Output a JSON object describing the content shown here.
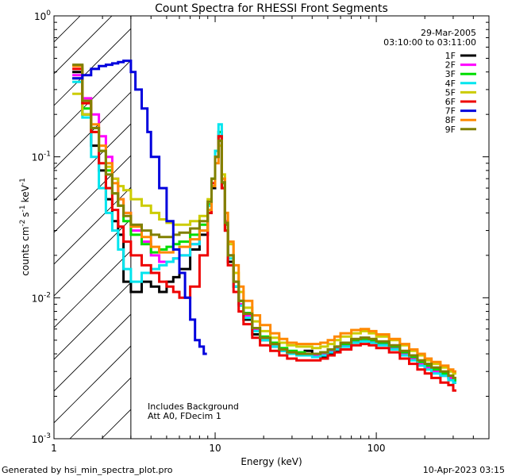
{
  "chart_data": {
    "type": "line",
    "title": "Count Spectra for RHESSI Front Segments",
    "xlabel": "Energy (keV)",
    "ylabel_base": "counts cm",
    "ylabel_parts": {
      "e1": "-2",
      "s": "s",
      "e2": "-1",
      "kev": "keV",
      "e3": "-1"
    },
    "xscale": "log",
    "yscale": "log",
    "xlim": [
      1,
      500
    ],
    "ylim": [
      0.001,
      1
    ],
    "xticks": [
      {
        "value": 1,
        "label": "1"
      },
      {
        "value": 10,
        "label": "10"
      },
      {
        "value": 100,
        "label": "100"
      }
    ],
    "yticks": [
      {
        "value": 1,
        "base": "10",
        "exp": "0"
      },
      {
        "value": 0.1,
        "base": "10",
        "exp": "-1"
      },
      {
        "value": 0.01,
        "base": "10",
        "exp": "-2"
      },
      {
        "value": 0.001,
        "base": "10",
        "exp": "-3"
      }
    ],
    "date": "29-Mar-2005",
    "time_range": "03:10:00 to 03:11:00",
    "annotation_lines": [
      "Includes Background",
      "Att A0, FDecim 1"
    ],
    "hatched_region_max_kev": 3,
    "series": [
      {
        "name": "1F",
        "color": "#000000",
        "x": [
          1.3,
          1.5,
          1.7,
          1.9,
          2.1,
          2.3,
          2.5,
          2.7,
          3.0,
          3.5,
          4,
          4.5,
          5,
          5.5,
          6,
          7,
          8,
          9,
          9.5,
          10,
          10.5,
          11,
          11.5,
          12,
          13,
          14,
          15,
          17,
          19,
          22,
          25,
          28,
          32,
          36,
          40,
          45,
          50,
          55,
          60,
          70,
          80,
          90,
          100,
          120,
          140,
          160,
          180,
          200,
          220,
          250,
          280,
          300
        ],
        "y": [
          0.4,
          0.2,
          0.12,
          0.08,
          0.05,
          0.035,
          0.028,
          0.013,
          0.011,
          0.013,
          0.012,
          0.011,
          0.013,
          0.014,
          0.016,
          0.022,
          0.028,
          0.04,
          0.06,
          0.1,
          0.14,
          0.06,
          0.03,
          0.018,
          0.012,
          0.009,
          0.007,
          0.0055,
          0.005,
          0.0045,
          0.0042,
          0.004,
          0.004,
          0.0042,
          0.004,
          0.0038,
          0.004,
          0.0042,
          0.0045,
          0.005,
          0.0052,
          0.005,
          0.0048,
          0.0045,
          0.004,
          0.0038,
          0.0035,
          0.0032,
          0.003,
          0.0028,
          0.0027,
          0.0025
        ]
      },
      {
        "name": "2F",
        "color": "#ff00ff",
        "x": [
          1.3,
          1.5,
          1.7,
          1.9,
          2.1,
          2.3,
          2.5,
          2.7,
          3.0,
          3.5,
          4,
          4.5,
          5,
          5.5,
          6,
          7,
          8,
          9,
          9.5,
          10,
          10.5,
          11,
          11.5,
          12,
          13,
          14,
          15,
          17,
          19,
          22,
          25,
          28,
          32,
          36,
          40,
          45,
          50,
          55,
          60,
          70,
          80,
          90,
          100,
          120,
          140,
          160,
          180,
          200,
          220,
          250,
          280,
          300
        ],
        "y": [
          0.38,
          0.26,
          0.2,
          0.14,
          0.1,
          0.07,
          0.05,
          0.04,
          0.03,
          0.025,
          0.02,
          0.018,
          0.018,
          0.019,
          0.02,
          0.024,
          0.03,
          0.045,
          0.065,
          0.1,
          0.15,
          0.07,
          0.035,
          0.02,
          0.013,
          0.009,
          0.0075,
          0.006,
          0.0052,
          0.0047,
          0.0043,
          0.0041,
          0.004,
          0.004,
          0.0039,
          0.004,
          0.0042,
          0.0044,
          0.0046,
          0.0049,
          0.005,
          0.0049,
          0.0047,
          0.0044,
          0.004,
          0.0037,
          0.0034,
          0.0032,
          0.003,
          0.0029,
          0.0027,
          0.0026
        ]
      },
      {
        "name": "3F",
        "color": "#00dd00",
        "x": [
          1.3,
          1.5,
          1.7,
          1.9,
          2.1,
          2.3,
          2.5,
          2.7,
          3.0,
          3.5,
          4,
          4.5,
          5,
          5.5,
          6,
          7,
          8,
          9,
          9.5,
          10,
          10.5,
          11,
          11.5,
          12,
          13,
          14,
          15,
          17,
          19,
          22,
          25,
          28,
          32,
          36,
          40,
          45,
          50,
          55,
          60,
          70,
          80,
          90,
          100,
          120,
          140,
          160,
          180,
          200,
          220,
          250,
          280,
          300
        ],
        "y": [
          0.36,
          0.22,
          0.16,
          0.11,
          0.08,
          0.055,
          0.045,
          0.035,
          0.028,
          0.024,
          0.021,
          0.022,
          0.023,
          0.024,
          0.025,
          0.028,
          0.033,
          0.046,
          0.07,
          0.11,
          0.15,
          0.065,
          0.033,
          0.02,
          0.013,
          0.0095,
          0.0078,
          0.0061,
          0.0053,
          0.0048,
          0.0044,
          0.0042,
          0.0041,
          0.004,
          0.004,
          0.0041,
          0.0043,
          0.0045,
          0.0047,
          0.005,
          0.0051,
          0.005,
          0.0048,
          0.0045,
          0.0041,
          0.0038,
          0.0035,
          0.0033,
          0.0031,
          0.0029,
          0.0028,
          0.0026
        ]
      },
      {
        "name": "4F",
        "color": "#00e5ee",
        "x": [
          1.3,
          1.5,
          1.7,
          1.9,
          2.1,
          2.3,
          2.5,
          2.7,
          3.0,
          3.5,
          4,
          4.5,
          5,
          5.5,
          6,
          7,
          8,
          9,
          9.5,
          10,
          10.5,
          11,
          11.5,
          12,
          13,
          14,
          15,
          17,
          19,
          22,
          25,
          28,
          32,
          36,
          40,
          45,
          50,
          55,
          60,
          70,
          80,
          90,
          100,
          120,
          140,
          160,
          180,
          200,
          220,
          250,
          280,
          300
        ],
        "y": [
          0.34,
          0.19,
          0.1,
          0.06,
          0.04,
          0.03,
          0.022,
          0.016,
          0.013,
          0.015,
          0.016,
          0.017,
          0.018,
          0.019,
          0.02,
          0.024,
          0.03,
          0.045,
          0.07,
          0.11,
          0.17,
          0.07,
          0.034,
          0.019,
          0.012,
          0.0088,
          0.0072,
          0.0058,
          0.005,
          0.0045,
          0.0042,
          0.004,
          0.0039,
          0.0039,
          0.0038,
          0.0039,
          0.0041,
          0.0043,
          0.0045,
          0.0048,
          0.0049,
          0.0048,
          0.0046,
          0.0043,
          0.0039,
          0.0036,
          0.0033,
          0.0031,
          0.0029,
          0.0028,
          0.0026,
          0.0025
        ]
      },
      {
        "name": "5F",
        "color": "#cccc00",
        "x": [
          1.3,
          1.5,
          1.7,
          1.9,
          2.1,
          2.3,
          2.5,
          2.7,
          3.0,
          3.5,
          4,
          4.5,
          5,
          5.5,
          6,
          7,
          8,
          9,
          9.5,
          10,
          10.5,
          11,
          11.5,
          12,
          13,
          14,
          15,
          17,
          19,
          22,
          25,
          28,
          32,
          36,
          40,
          45,
          50,
          55,
          60,
          70,
          80,
          90,
          100,
          120,
          140,
          160,
          180,
          200,
          220,
          250,
          280,
          300
        ],
        "y": [
          0.28,
          0.2,
          0.15,
          0.11,
          0.085,
          0.07,
          0.062,
          0.058,
          0.05,
          0.045,
          0.04,
          0.036,
          0.034,
          0.033,
          0.033,
          0.035,
          0.038,
          0.05,
          0.07,
          0.1,
          0.12,
          0.075,
          0.04,
          0.024,
          0.015,
          0.011,
          0.0085,
          0.0068,
          0.0058,
          0.0052,
          0.0048,
          0.0046,
          0.0045,
          0.0045,
          0.0044,
          0.0045,
          0.0047,
          0.005,
          0.0053,
          0.0056,
          0.0058,
          0.0056,
          0.0053,
          0.005,
          0.0046,
          0.0042,
          0.0039,
          0.0036,
          0.0034,
          0.0032,
          0.003,
          0.0029
        ]
      },
      {
        "name": "6F",
        "color": "#ee0000",
        "x": [
          1.3,
          1.5,
          1.7,
          1.9,
          2.1,
          2.3,
          2.5,
          2.7,
          3.0,
          3.5,
          4,
          4.5,
          5,
          5.5,
          6,
          7,
          8,
          9,
          9.5,
          10,
          10.5,
          11,
          11.5,
          12,
          13,
          14,
          15,
          17,
          19,
          22,
          25,
          28,
          32,
          36,
          40,
          45,
          50,
          55,
          60,
          70,
          80,
          90,
          100,
          120,
          140,
          160,
          180,
          200,
          220,
          250,
          280,
          300
        ],
        "y": [
          0.42,
          0.24,
          0.15,
          0.09,
          0.06,
          0.042,
          0.032,
          0.025,
          0.02,
          0.017,
          0.015,
          0.013,
          0.012,
          0.011,
          0.01,
          0.012,
          0.02,
          0.04,
          0.065,
          0.1,
          0.14,
          0.06,
          0.03,
          0.017,
          0.011,
          0.008,
          0.0065,
          0.0052,
          0.0046,
          0.0042,
          0.0039,
          0.0037,
          0.0036,
          0.0036,
          0.0036,
          0.0037,
          0.0039,
          0.0041,
          0.0043,
          0.0046,
          0.0047,
          0.0046,
          0.0044,
          0.0041,
          0.0037,
          0.0034,
          0.0031,
          0.0029,
          0.0027,
          0.0025,
          0.0024,
          0.0022
        ]
      },
      {
        "name": "7F",
        "color": "#0000dd",
        "x": [
          1.3,
          1.5,
          1.7,
          1.9,
          2.1,
          2.3,
          2.5,
          2.7,
          3.0,
          3.2,
          3.5,
          3.8,
          4,
          4.5,
          5,
          5.5,
          6,
          6.5,
          7,
          7.5,
          8,
          8.5
        ],
        "y": [
          0.36,
          0.38,
          0.42,
          0.44,
          0.45,
          0.46,
          0.47,
          0.48,
          0.4,
          0.3,
          0.22,
          0.15,
          0.1,
          0.06,
          0.035,
          0.022,
          0.015,
          0.01,
          0.007,
          0.005,
          0.0045,
          0.004
        ]
      },
      {
        "name": "8F",
        "color": "#ff8800",
        "x": [
          1.3,
          1.5,
          1.7,
          1.9,
          2.1,
          2.3,
          2.5,
          2.7,
          3.0,
          3.5,
          4,
          4.5,
          5,
          5.5,
          6,
          7,
          8,
          9,
          9.5,
          10,
          10.5,
          11,
          11.5,
          12,
          13,
          14,
          15,
          17,
          19,
          22,
          25,
          28,
          32,
          36,
          40,
          45,
          50,
          55,
          60,
          70,
          80,
          90,
          100,
          120,
          140,
          160,
          180,
          200,
          220,
          250,
          280,
          300
        ],
        "y": [
          0.44,
          0.25,
          0.17,
          0.12,
          0.09,
          0.065,
          0.05,
          0.04,
          0.032,
          0.027,
          0.023,
          0.021,
          0.021,
          0.022,
          0.023,
          0.026,
          0.03,
          0.042,
          0.062,
          0.09,
          0.13,
          0.07,
          0.04,
          0.025,
          0.017,
          0.012,
          0.0095,
          0.0075,
          0.0064,
          0.0056,
          0.0051,
          0.0048,
          0.0047,
          0.0047,
          0.0047,
          0.0048,
          0.005,
          0.0053,
          0.0056,
          0.0059,
          0.006,
          0.0058,
          0.0055,
          0.0051,
          0.0047,
          0.0043,
          0.004,
          0.0037,
          0.0035,
          0.0033,
          0.0031,
          0.003
        ]
      },
      {
        "name": "9F",
        "color": "#808000",
        "x": [
          1.3,
          1.5,
          1.7,
          1.9,
          2.1,
          2.3,
          2.5,
          2.7,
          3.0,
          3.5,
          4,
          4.5,
          5,
          5.5,
          6,
          7,
          8,
          9,
          9.5,
          10,
          10.5,
          11,
          11.5,
          12,
          13,
          14,
          15,
          17,
          19,
          22,
          25,
          28,
          32,
          36,
          40,
          45,
          50,
          55,
          60,
          70,
          80,
          90,
          100,
          120,
          140,
          160,
          180,
          200,
          220,
          250,
          280,
          300
        ],
        "y": [
          0.45,
          0.25,
          0.16,
          0.11,
          0.075,
          0.055,
          0.045,
          0.038,
          0.033,
          0.03,
          0.028,
          0.027,
          0.027,
          0.028,
          0.029,
          0.031,
          0.035,
          0.048,
          0.07,
          0.1,
          0.13,
          0.066,
          0.034,
          0.02,
          0.013,
          0.0095,
          0.0077,
          0.0061,
          0.0052,
          0.0047,
          0.0043,
          0.0041,
          0.004,
          0.004,
          0.004,
          0.0041,
          0.0043,
          0.0045,
          0.0048,
          0.0051,
          0.0052,
          0.0051,
          0.0049,
          0.0046,
          0.0042,
          0.0039,
          0.0036,
          0.0034,
          0.0032,
          0.003,
          0.0028,
          0.0027
        ]
      }
    ]
  },
  "footer": {
    "left": "Generated by hsi_min_spectra_plot.pro",
    "right": "10-Apr-2023 03:15"
  }
}
